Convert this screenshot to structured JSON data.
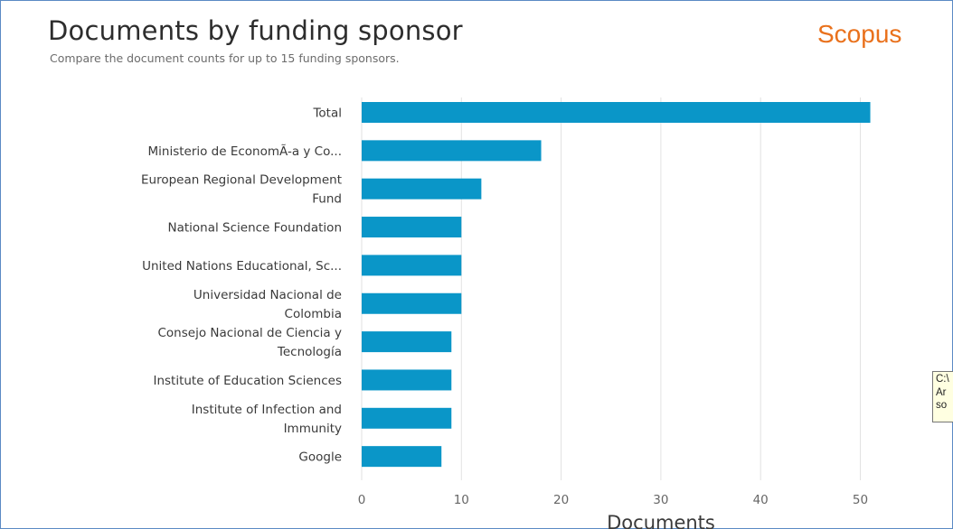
{
  "header": {
    "title": "Documents by funding sponsor",
    "subtitle": "Compare the document counts for up to 15 funding sponsors.",
    "brand": "Scopus"
  },
  "tooltip": {
    "lines": [
      "C:\\",
      "Ar",
      "so"
    ]
  },
  "colors": {
    "bar": "#0a96c8",
    "brand": "#e9711c",
    "grid": "#e2e2e2",
    "border": "#5b8ac4"
  },
  "chart_data": {
    "type": "bar",
    "orientation": "horizontal",
    "title": "Documents by funding sponsor",
    "subtitle": "Compare the document counts for up to 15 funding sponsors.",
    "xlabel": "Documents",
    "ylabel": "",
    "xlim": [
      0,
      60
    ],
    "xticks": [
      0,
      10,
      20,
      30,
      40,
      50,
      60
    ],
    "grid": true,
    "legend": "none",
    "categories": [
      [
        "Total"
      ],
      [
        "Ministerio de EconomÃ-a y Co..."
      ],
      [
        "European Regional Development",
        "Fund"
      ],
      [
        "National Science Foundation"
      ],
      [
        "United Nations Educational, Sc..."
      ],
      [
        "Universidad Nacional de",
        "Colombia"
      ],
      [
        "Consejo Nacional de Ciencia y",
        "Tecnología"
      ],
      [
        "Institute of Education Sciences"
      ],
      [
        "Institute of Infection and",
        "Immunity"
      ],
      [
        "Google"
      ]
    ],
    "values": [
      51,
      18,
      12,
      10,
      10,
      10,
      9,
      9,
      9,
      8
    ]
  }
}
